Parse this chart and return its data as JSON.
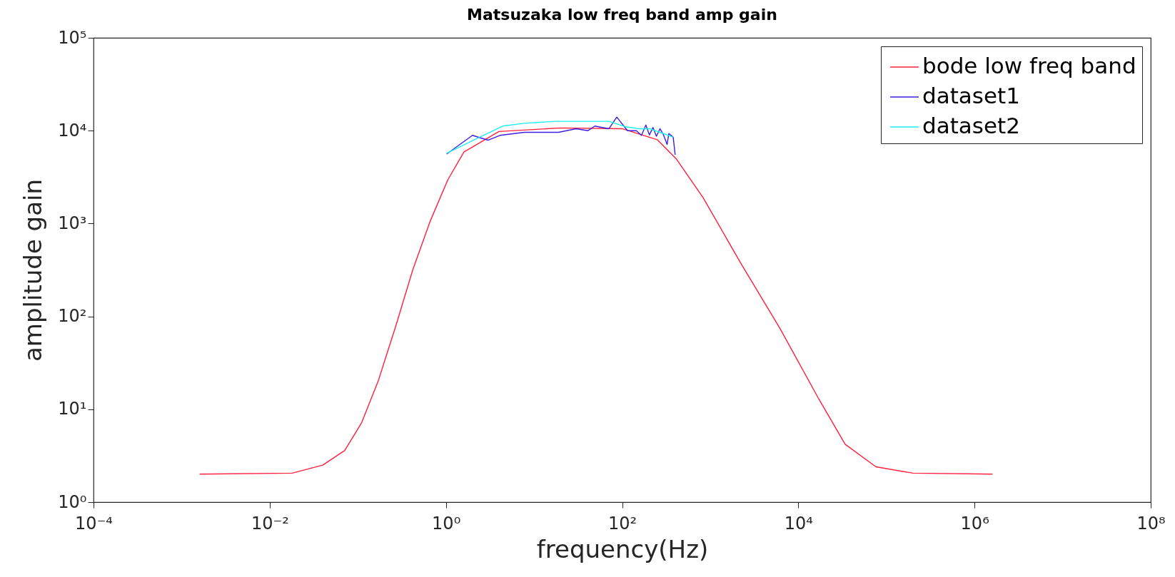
{
  "chart_data": {
    "type": "line",
    "title": "Matsuzaka low freq band amp gain",
    "xlabel": "frequency(Hz)",
    "ylabel": "amplitude gain",
    "log": "xy",
    "grid": false,
    "legend": "top right",
    "xlim": [
      0.0001,
      100000000
    ],
    "ylim": [
      1,
      100000
    ],
    "xticks": [
      {
        "value": 0.0001,
        "label": "10⁻⁴"
      },
      {
        "value": 0.01,
        "label": "10⁻²"
      },
      {
        "value": 1,
        "label": "10⁰"
      },
      {
        "value": 100,
        "label": "10²"
      },
      {
        "value": 10000,
        "label": "10⁴"
      },
      {
        "value": 1000000,
        "label": "10⁶"
      },
      {
        "value": 100000000,
        "label": "10⁸"
      }
    ],
    "yticks": [
      {
        "value": 1,
        "label": "10⁰"
      },
      {
        "value": 10,
        "label": "10¹"
      },
      {
        "value": 100,
        "label": "10²"
      },
      {
        "value": 1000,
        "label": "10³"
      },
      {
        "value": 10000,
        "label": "10⁴"
      },
      {
        "value": 100000,
        "label": "10⁵"
      }
    ],
    "series": [
      {
        "name": "bode low freq band",
        "color": "#ff1f3d",
        "x": [
          0.0016,
          0.018,
          0.04,
          0.071,
          0.11,
          0.17,
          0.27,
          0.42,
          0.66,
          1.05,
          1.6,
          4,
          20,
          100,
          250,
          410,
          830,
          2200,
          6200,
          17000,
          34000,
          76000,
          200000,
          1600000
        ],
        "values": [
          2.0,
          2.05,
          2.5,
          3.6,
          7.1,
          20,
          79,
          316,
          1050,
          2950,
          5900,
          9800,
          10700,
          10500,
          8000,
          5000,
          1900,
          380,
          74,
          13,
          4.2,
          2.4,
          2.05,
          2.0
        ]
      },
      {
        "name": "dataset1",
        "color": "#3d1ee0",
        "x": [
          1.02,
          2.0,
          3.0,
          4.1,
          7.8,
          19,
          30,
          41,
          49,
          71,
          87,
          115,
          145,
          166,
          186,
          204,
          224,
          245,
          269,
          295,
          324,
          339,
          380,
          400
        ],
        "values": [
          5600,
          8900,
          7900,
          8900,
          9600,
          9600,
          10500,
          10000,
          11200,
          10500,
          14000,
          10000,
          10000,
          8900,
          11500,
          9000,
          10800,
          8700,
          10500,
          9000,
          7100,
          9300,
          8500,
          5500
        ]
      },
      {
        "name": "dataset2",
        "color": "#19f0f5",
        "x": [
          1.02,
          2.3,
          4.4,
          7.8,
          17,
          71,
          110,
          155,
          204,
          269,
          380
        ],
        "values": [
          5700,
          8300,
          11200,
          12000,
          12600,
          12600,
          11000,
          10500,
          10500,
          9600,
          8500
        ]
      }
    ]
  }
}
